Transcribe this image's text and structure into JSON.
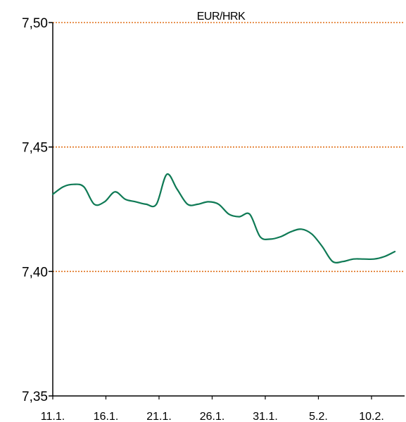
{
  "chart_data": {
    "type": "line",
    "title": "EUR/HRK",
    "xlabel": "",
    "ylabel": "",
    "ylim": [
      7.35,
      7.5
    ],
    "ytick_values": [
      7.35,
      7.4,
      7.45,
      7.5
    ],
    "ytick_labels": [
      "7,35",
      "7,40",
      "7,45",
      "7,50"
    ],
    "xtick_labels": [
      "11.1.",
      "16.1.",
      "21.1.",
      "26.1.",
      "31.1.",
      "5.2.",
      "10.2."
    ],
    "grid": "horizontal dotted at 7,40 / 7,45 / 7,50",
    "legend": "none",
    "colors": {
      "line": "#0f7a55",
      "grid": "#e0701a",
      "axis": "#000000"
    },
    "x": [
      "11.1.",
      "12.1.",
      "13.1.",
      "14.1.",
      "15.1.",
      "16.1.",
      "17.1.",
      "18.1.",
      "19.1.",
      "20.1.",
      "21.1.",
      "22.1.",
      "23.1.",
      "24.1.",
      "25.1.",
      "26.1.",
      "27.1.",
      "28.1.",
      "29.1.",
      "30.1.",
      "31.1.",
      "1.2.",
      "2.2.",
      "3.2.",
      "4.2.",
      "5.2.",
      "6.2.",
      "7.2.",
      "8.2.",
      "9.2.",
      "10.2.",
      "11.2.",
      "12.2.",
      "13.2."
    ],
    "series": [
      {
        "values": [
          7.431,
          7.434,
          7.435,
          7.434,
          7.427,
          7.428,
          7.432,
          7.429,
          7.428,
          7.427,
          7.427,
          7.439,
          7.433,
          7.427,
          7.427,
          7.428,
          7.427,
          7.423,
          7.422,
          7.423,
          7.414,
          7.413,
          7.414,
          7.416,
          7.417,
          7.415,
          7.41,
          7.404,
          7.404,
          7.405,
          7.405,
          7.405,
          7.406,
          7.408
        ]
      }
    ]
  }
}
